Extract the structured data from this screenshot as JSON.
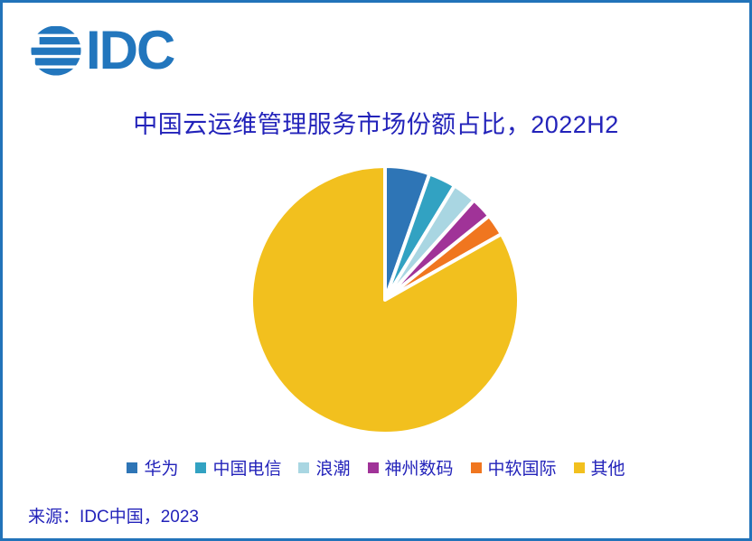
{
  "page": {
    "background": "#FFFFFF",
    "border_color": "#2273B9"
  },
  "logo": {
    "text": "IDC",
    "color": "#2276BD",
    "icon": "globe-stripes-icon"
  },
  "title": {
    "text": "中国云运维管理服务市场份额占比，2022H2",
    "color": "#2323BA"
  },
  "chart_data": {
    "type": "pie",
    "title": "中国云运维管理服务市场份额占比，2022H2",
    "unit": "percent",
    "start_angle_deg": 0,
    "direction": "clockwise",
    "values_shown": false,
    "legend_position": "bottom",
    "slice_gap_color": "#FFFFFF",
    "slices": [
      {
        "label": "华为",
        "value": 5.4,
        "color": "#2E75B6"
      },
      {
        "label": "中国电信",
        "value": 3.3,
        "color": "#32A2C2"
      },
      {
        "label": "浪潮",
        "value": 2.9,
        "color": "#A9D6E2"
      },
      {
        "label": "神州数码",
        "value": 2.6,
        "color": "#A03398"
      },
      {
        "label": "中软国际",
        "value": 2.6,
        "color": "#F0761F"
      },
      {
        "label": "其他",
        "value": 83.2,
        "color": "#F2C01E"
      }
    ]
  },
  "source": {
    "text": "来源：IDC中国，2023"
  }
}
